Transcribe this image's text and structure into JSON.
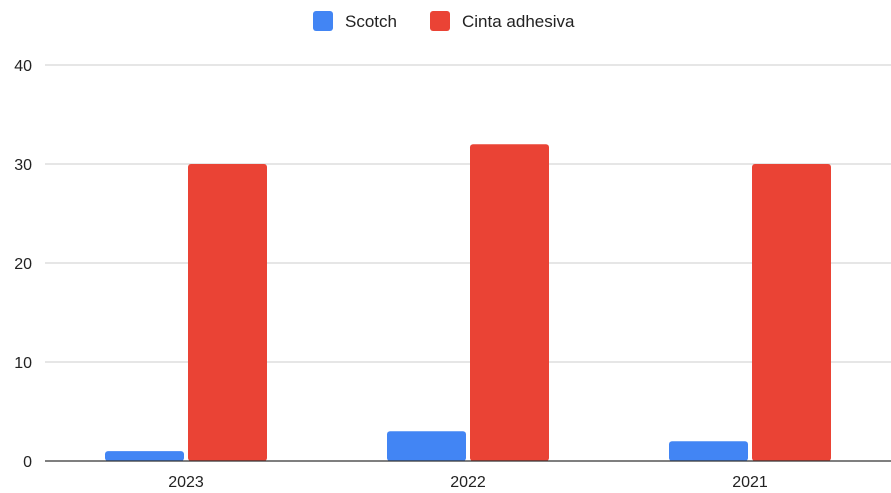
{
  "chart_data": {
    "type": "bar",
    "categories": [
      "2023",
      "2022",
      "2021"
    ],
    "series": [
      {
        "name": "Scotch",
        "values": [
          1,
          3,
          2
        ],
        "color": "#4285F4"
      },
      {
        "name": "Cinta adhesiva",
        "values": [
          30,
          32,
          30
        ],
        "color": "#EA4335"
      }
    ],
    "yticks": [
      "0",
      "10",
      "20",
      "30",
      "40"
    ],
    "ylim": [
      0,
      40
    ],
    "grid": true,
    "legend_position": "top"
  }
}
